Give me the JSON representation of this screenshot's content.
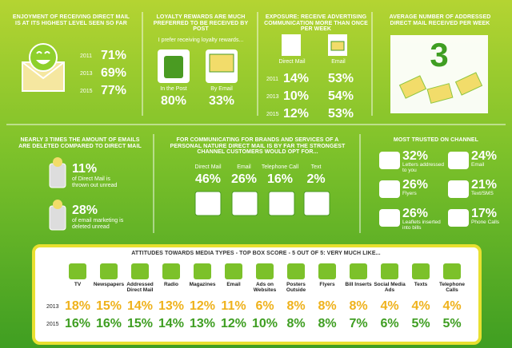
{
  "enjoyment": {
    "title": "ENJOYMENT OF RECEIVING DIRECT MAIL IS AT ITS HIGHEST LEVEL SEEN SO FAR",
    "rows": [
      [
        "2011",
        "71%"
      ],
      [
        "2013",
        "69%"
      ],
      [
        "2015",
        "77%"
      ]
    ]
  },
  "loyalty": {
    "title": "LOYALTY REWARDS ARE MUCH PREFERRED TO BE RECEIVED BY POST",
    "subtitle": "I prefer receiving loyalty rewards...",
    "options": [
      [
        "In the Post",
        "80%"
      ],
      [
        "By Email",
        "33%"
      ]
    ]
  },
  "exposure": {
    "title": "EXPOSURE: RECEIVE ADVERTISING COMMUNICATION MORE THAN ONCE PER WEEK",
    "columns": [
      "Direct Mail",
      "Email"
    ],
    "rows": [
      [
        "2011",
        "14%",
        "53%"
      ],
      [
        "2013",
        "10%",
        "54%"
      ],
      [
        "2015",
        "12%",
        "53%"
      ]
    ]
  },
  "average": {
    "title": "AVERAGE NUMBER OF ADDRESSED DIRECT MAIL RECEIVED PER WEEK",
    "value": "3"
  },
  "deleted": {
    "title": "NEARLY 3 TIMES THE AMOUNT OF EMAILS ARE DELETED COMPARED TO DIRECT MAIL",
    "items": [
      [
        "11%",
        "of Direct Mail is thrown out unread"
      ],
      [
        "28%",
        "of email marketing is deleted unread"
      ]
    ]
  },
  "personal": {
    "title": "FOR COMMUNICATING FOR BRANDS AND SERVICES OF A PERSONAL NATURE DIRECT MAIL IS BY FAR THE STRONGEST CHANNEL CUSTOMERS WOULD OPT FOR...",
    "items": [
      [
        "Direct Mail",
        "46%"
      ],
      [
        "Email",
        "26%"
      ],
      [
        "Telephone Call",
        "16%"
      ],
      [
        "Text",
        "2%"
      ]
    ]
  },
  "trusted": {
    "title": "MOST TRUSTED ON CHANNEL",
    "items": [
      [
        "32%",
        "Letters addressed to you"
      ],
      [
        "24%",
        "Email"
      ],
      [
        "26%",
        "Flyers"
      ],
      [
        "21%",
        "Text/SMS"
      ],
      [
        "26%",
        "Leaflets inserted into bills"
      ],
      [
        "17%",
        "Phone Calls"
      ]
    ]
  },
  "attitudes": {
    "title": "ATTITUDES TOWARDS MEDIA TYPES - TOP BOX SCORE - 5 OUT OF 5: VERY MUCH LIKE...",
    "columns": [
      "TV",
      "Newspapers",
      "Addressed Direct Mail",
      "Radio",
      "Magazines",
      "Email",
      "Ads on Websites",
      "Posters Outside",
      "Flyers",
      "Bill Inserts",
      "Social Media Ads",
      "Texts",
      "Telephone Calls"
    ],
    "rows": [
      {
        "year": "2013",
        "values": [
          "18%",
          "15%",
          "14%",
          "13%",
          "12%",
          "11%",
          "6%",
          "8%",
          "8%",
          "8%",
          "4%",
          "4%",
          "4%"
        ]
      },
      {
        "year": "2015",
        "values": [
          "16%",
          "16%",
          "15%",
          "14%",
          "13%",
          "12%",
          "10%",
          "8%",
          "8%",
          "7%",
          "6%",
          "5%",
          "5%"
        ]
      }
    ]
  }
}
